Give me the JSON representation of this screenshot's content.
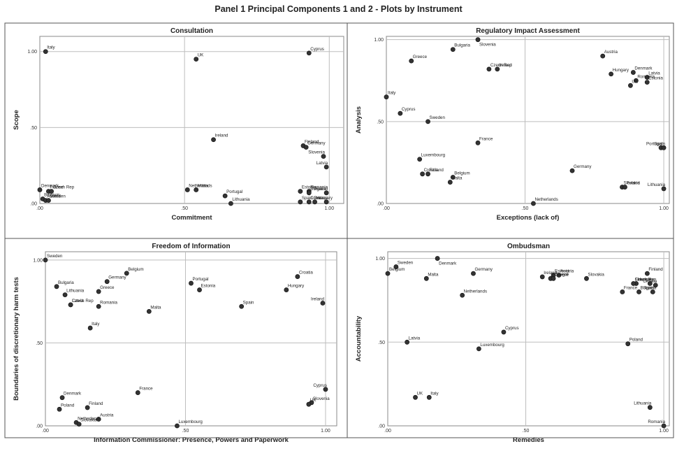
{
  "page_title": "Panel 1 Principal Components 1 and 2 - Plots by Instrument",
  "chart_data": [
    {
      "type": "scatter",
      "title": "Consultation",
      "xlabel": "Commitment",
      "ylabel": "Scope",
      "xlim": [
        0,
        1.05
      ],
      "ylim": [
        0,
        1.1
      ],
      "xticks": [
        {
          "v": 0,
          "label": ".00"
        },
        {
          "v": 0.5,
          "label": ".50"
        },
        {
          "v": 1,
          "label": "1.00"
        }
      ],
      "yticks": [
        {
          "v": 0,
          "label": ".00"
        },
        {
          "v": 0.5,
          "label": ".50"
        },
        {
          "v": 1,
          "label": "1.00"
        }
      ],
      "grid": true,
      "points": [
        {
          "label": "Italy",
          "x": 0.02,
          "y": 1.0
        },
        {
          "label": "UK",
          "x": 0.54,
          "y": 0.95
        },
        {
          "label": "Cyprus",
          "x": 0.93,
          "y": 0.99
        },
        {
          "label": "Ireland",
          "x": 0.6,
          "y": 0.42
        },
        {
          "label": "Finland",
          "x": 0.91,
          "y": 0.38
        },
        {
          "label": "Germany",
          "x": 0.92,
          "y": 0.37
        },
        {
          "label": "Slovenia",
          "x": 0.98,
          "y": 0.31
        },
        {
          "label": "Latvia",
          "x": 0.99,
          "y": 0.24
        },
        {
          "label": "Denmark",
          "x": 0.0,
          "y": 0.09
        },
        {
          "label": "France",
          "x": 0.03,
          "y": 0.08
        },
        {
          "label": "Czech Rep",
          "x": 0.04,
          "y": 0.08
        },
        {
          "label": "Belgium",
          "x": 0.01,
          "y": 0.03
        },
        {
          "label": "Austria",
          "x": 0.02,
          "y": 0.02
        },
        {
          "label": "Sweden",
          "x": 0.03,
          "y": 0.02
        },
        {
          "label": "Netherlands",
          "x": 0.51,
          "y": 0.09
        },
        {
          "label": "Malta",
          "x": 0.54,
          "y": 0.09
        },
        {
          "label": "Portugal",
          "x": 0.64,
          "y": 0.05
        },
        {
          "label": "Lithuania",
          "x": 0.66,
          "y": 0.0
        },
        {
          "label": "Estonia",
          "x": 0.9,
          "y": 0.08
        },
        {
          "label": "Romania",
          "x": 0.93,
          "y": 0.08
        },
        {
          "label": "Bulgaria",
          "x": 0.93,
          "y": 0.07
        },
        {
          "label": "Poland",
          "x": 0.99,
          "y": 0.07
        },
        {
          "label": "Spain",
          "x": 0.9,
          "y": 0.01
        },
        {
          "label": "Croatia",
          "x": 0.93,
          "y": 0.01
        },
        {
          "label": "Hungary",
          "x": 0.95,
          "y": 0.01
        },
        {
          "label": "Greece",
          "x": 0.99,
          "y": 0.01
        }
      ]
    },
    {
      "type": "scatter",
      "title": "Regulatory Impact Assessment",
      "xlabel": "Exceptions (lack of)",
      "ylabel": "Analysis",
      "xlim": [
        0,
        1.02
      ],
      "ylim": [
        0,
        1.02
      ],
      "xticks": [
        {
          "v": 0,
          "label": ".00"
        },
        {
          "v": 0.5,
          "label": ".50"
        },
        {
          "v": 1,
          "label": "1.00"
        }
      ],
      "yticks": [
        {
          "v": 0,
          "label": ".00"
        },
        {
          "v": 0.5,
          "label": ".50"
        },
        {
          "v": 1,
          "label": "1.00"
        }
      ],
      "grid": true,
      "points": [
        {
          "label": "Slovenia",
          "x": 0.33,
          "y": 1.0
        },
        {
          "label": "Bulgaria",
          "x": 0.24,
          "y": 0.94
        },
        {
          "label": "Greece",
          "x": 0.09,
          "y": 0.87
        },
        {
          "label": "Ireland",
          "x": 0.4,
          "y": 0.82
        },
        {
          "label": "Czech Rep",
          "x": 0.37,
          "y": 0.82
        },
        {
          "label": "Austria",
          "x": 0.78,
          "y": 0.9
        },
        {
          "label": "Hungary",
          "x": 0.81,
          "y": 0.79
        },
        {
          "label": "Denmark",
          "x": 0.89,
          "y": 0.8
        },
        {
          "label": "Latvia",
          "x": 0.94,
          "y": 0.77
        },
        {
          "label": "Romania",
          "x": 0.9,
          "y": 0.75
        },
        {
          "label": "UK",
          "x": 0.88,
          "y": 0.72
        },
        {
          "label": "Estonia",
          "x": 0.94,
          "y": 0.74
        },
        {
          "label": "Italy",
          "x": 0.0,
          "y": 0.65
        },
        {
          "label": "Cyprus",
          "x": 0.05,
          "y": 0.55
        },
        {
          "label": "Sweden",
          "x": 0.15,
          "y": 0.5
        },
        {
          "label": "France",
          "x": 0.33,
          "y": 0.37
        },
        {
          "label": "Portugal",
          "x": 0.99,
          "y": 0.34
        },
        {
          "label": "Spain",
          "x": 1.0,
          "y": 0.34
        },
        {
          "label": "Luxembourg",
          "x": 0.12,
          "y": 0.27
        },
        {
          "label": "Germany",
          "x": 0.67,
          "y": 0.2
        },
        {
          "label": "Finland",
          "x": 0.15,
          "y": 0.18
        },
        {
          "label": "Croatia",
          "x": 0.13,
          "y": 0.18
        },
        {
          "label": "Belgium",
          "x": 0.24,
          "y": 0.16
        },
        {
          "label": "Malta",
          "x": 0.23,
          "y": 0.13
        },
        {
          "label": "Slovakia",
          "x": 0.85,
          "y": 0.1
        },
        {
          "label": "Poland",
          "x": 0.86,
          "y": 0.1
        },
        {
          "label": "Lithuania",
          "x": 1.0,
          "y": 0.09
        },
        {
          "label": "Netherlands",
          "x": 0.53,
          "y": 0.0
        }
      ]
    },
    {
      "type": "scatter",
      "title": "Freedom of Information",
      "xlabel": "Information Commissioner: Presence, Powers and Paperwork",
      "ylabel": "Boundaries of discretionary harm tests",
      "xlim": [
        0,
        1.04
      ],
      "ylim": [
        0,
        1.05
      ],
      "xticks": [
        {
          "v": 0,
          "label": ".00"
        },
        {
          "v": 0.5,
          "label": ".50"
        },
        {
          "v": 1,
          "label": "1.00"
        }
      ],
      "yticks": [
        {
          "v": 0,
          "label": ".00"
        },
        {
          "v": 0.5,
          "label": ".50"
        },
        {
          "v": 1,
          "label": "1.00"
        }
      ],
      "grid": true,
      "points": [
        {
          "label": "Sweden",
          "x": 0.0,
          "y": 1.0
        },
        {
          "label": "Belgium",
          "x": 0.29,
          "y": 0.92
        },
        {
          "label": "Germany",
          "x": 0.22,
          "y": 0.87
        },
        {
          "label": "Bulgaria",
          "x": 0.04,
          "y": 0.84
        },
        {
          "label": "Greece",
          "x": 0.19,
          "y": 0.81
        },
        {
          "label": "Lithuania",
          "x": 0.07,
          "y": 0.79
        },
        {
          "label": "Latvia",
          "x": 0.09,
          "y": 0.73
        },
        {
          "label": "Romania",
          "x": 0.19,
          "y": 0.72
        },
        {
          "label": "Czech Rep",
          "x": 0.09,
          "y": 0.73
        },
        {
          "label": "Portugal",
          "x": 0.52,
          "y": 0.86
        },
        {
          "label": "Estonia",
          "x": 0.55,
          "y": 0.82
        },
        {
          "label": "Croatia",
          "x": 0.9,
          "y": 0.9
        },
        {
          "label": "Hungary",
          "x": 0.86,
          "y": 0.82
        },
        {
          "label": "Ireland",
          "x": 0.99,
          "y": 0.74
        },
        {
          "label": "Malta",
          "x": 0.37,
          "y": 0.69
        },
        {
          "label": "Spain",
          "x": 0.7,
          "y": 0.72
        },
        {
          "label": "Italy",
          "x": 0.16,
          "y": 0.59
        },
        {
          "label": "France",
          "x": 0.33,
          "y": 0.2
        },
        {
          "label": "Denmark",
          "x": 0.06,
          "y": 0.17
        },
        {
          "label": "Cyprus",
          "x": 1.0,
          "y": 0.22
        },
        {
          "label": "Slovenia",
          "x": 0.95,
          "y": 0.14
        },
        {
          "label": "UK",
          "x": 0.94,
          "y": 0.13
        },
        {
          "label": "Finland",
          "x": 0.15,
          "y": 0.11
        },
        {
          "label": "Poland",
          "x": 0.05,
          "y": 0.1
        },
        {
          "label": "Austria",
          "x": 0.19,
          "y": 0.04
        },
        {
          "label": "Netherlands",
          "x": 0.11,
          "y": 0.02
        },
        {
          "label": "Slovakia",
          "x": 0.12,
          "y": 0.01
        },
        {
          "label": "Luxembourg",
          "x": 0.47,
          "y": 0.0
        }
      ]
    },
    {
      "type": "scatter",
      "title": "Ombudsman",
      "xlabel": "Remedies",
      "ylabel": "Accountability",
      "xlim": [
        0,
        1.02
      ],
      "ylim": [
        0,
        1.04
      ],
      "xticks": [
        {
          "v": 0,
          "label": ".00"
        },
        {
          "v": 0.5,
          "label": ".50"
        },
        {
          "v": 1,
          "label": "1.00"
        }
      ],
      "yticks": [
        {
          "v": 0,
          "label": ".00"
        },
        {
          "v": 0.5,
          "label": ".50"
        },
        {
          "v": 1,
          "label": "1.00"
        }
      ],
      "grid": true,
      "points": [
        {
          "label": "Denmark",
          "x": 0.18,
          "y": 1.0
        },
        {
          "label": "Sweden",
          "x": 0.03,
          "y": 0.95
        },
        {
          "label": "Belgium",
          "x": 0.0,
          "y": 0.91
        },
        {
          "label": "Malta",
          "x": 0.14,
          "y": 0.88
        },
        {
          "label": "Germany",
          "x": 0.31,
          "y": 0.91
        },
        {
          "label": "Netherlands",
          "x": 0.27,
          "y": 0.78
        },
        {
          "label": "Ireland",
          "x": 0.56,
          "y": 0.89
        },
        {
          "label": "Estonia",
          "x": 0.6,
          "y": 0.9
        },
        {
          "label": "Austria",
          "x": 0.62,
          "y": 0.9
        },
        {
          "label": "Portugal",
          "x": 0.59,
          "y": 0.88
        },
        {
          "label": "Greece",
          "x": 0.6,
          "y": 0.88
        },
        {
          "label": "Slovakia",
          "x": 0.72,
          "y": 0.88
        },
        {
          "label": "Finland",
          "x": 0.94,
          "y": 0.91
        },
        {
          "label": "Hungary",
          "x": 0.9,
          "y": 0.85
        },
        {
          "label": "Slovenia",
          "x": 0.95,
          "y": 0.85
        },
        {
          "label": "Czech Rep",
          "x": 0.89,
          "y": 0.85
        },
        {
          "label": "Croatia",
          "x": 0.97,
          "y": 0.84
        },
        {
          "label": "France",
          "x": 0.85,
          "y": 0.8
        },
        {
          "label": "Bulgaria",
          "x": 0.91,
          "y": 0.8
        },
        {
          "label": "Spain",
          "x": 0.96,
          "y": 0.8
        },
        {
          "label": "Cyprus",
          "x": 0.42,
          "y": 0.56
        },
        {
          "label": "Latvia",
          "x": 0.07,
          "y": 0.5
        },
        {
          "label": "Poland",
          "x": 0.87,
          "y": 0.49
        },
        {
          "label": "Luxembourg",
          "x": 0.33,
          "y": 0.46
        },
        {
          "label": "UK",
          "x": 0.1,
          "y": 0.17
        },
        {
          "label": "Italy",
          "x": 0.15,
          "y": 0.17
        },
        {
          "label": "Lithuania",
          "x": 0.95,
          "y": 0.11
        },
        {
          "label": "Romania",
          "x": 1.0,
          "y": 0.0
        }
      ]
    }
  ]
}
